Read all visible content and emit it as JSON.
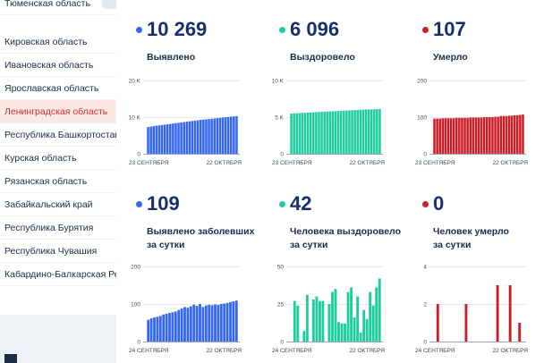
{
  "sidebar": {
    "items": [
      {
        "label": "Тюменская область"
      },
      {
        "label": "Кировская область"
      },
      {
        "label": "Ивановская область"
      },
      {
        "label": "Ярославская область"
      },
      {
        "label": "Ленинградская область",
        "active": true
      },
      {
        "label": "Республика Башкортостан"
      },
      {
        "label": "Курская область"
      },
      {
        "label": "Рязанская область"
      },
      {
        "label": "Забайкальский край"
      },
      {
        "label": "Республика Бурятия"
      },
      {
        "label": "Республика Чувашия"
      },
      {
        "label": "Кабардино-Балкарская Республика"
      }
    ]
  },
  "colors": {
    "blue": "#3466f0",
    "green": "#1fcca0",
    "red": "#cc1e28"
  },
  "stats": [
    {
      "value": "10 269",
      "label_lines": [
        "Выявлено"
      ],
      "color": "blue",
      "icon": "blue-dot-icon"
    },
    {
      "value": "6 096",
      "label_lines": [
        "Выздоровело"
      ],
      "color": "green",
      "icon": "green-dot-icon"
    },
    {
      "value": "107",
      "label_lines": [
        "Умерло"
      ],
      "color": "red",
      "icon": "red-dot-icon"
    },
    {
      "value": "109",
      "label_lines": [
        "Выявлено заболевших",
        "за сутки"
      ],
      "color": "blue",
      "icon": "blue-dot-icon"
    },
    {
      "value": "42",
      "label_lines": [
        "Человека выздоровело",
        "за сутки"
      ],
      "color": "green",
      "icon": "green-dot-icon"
    },
    {
      "value": "0",
      "label_lines": [
        "Человек умерло",
        "за сутки"
      ],
      "color": "red",
      "icon": "red-dot-icon"
    }
  ],
  "chart_data": [
    {
      "type": "bar",
      "color": "blue",
      "yticks": [
        "20 K",
        "10 K",
        "0"
      ],
      "ylim": [
        0,
        20000
      ],
      "x_start": "23 СЕНТЯБРЯ",
      "x_end": "22 ОКТЯБРЯ",
      "values": [
        7300,
        7420,
        7550,
        7650,
        7750,
        7850,
        7950,
        8050,
        8150,
        8250,
        8350,
        8450,
        8550,
        8650,
        8750,
        8850,
        8950,
        9050,
        9150,
        9250,
        9330,
        9400,
        9480,
        9560,
        9640,
        9720,
        9800,
        9880,
        9960,
        10040,
        10120,
        10190,
        10269
      ]
    },
    {
      "type": "bar",
      "color": "green",
      "yticks": [
        "10 K",
        "5 K",
        "0"
      ],
      "ylim": [
        0,
        10000
      ],
      "x_start": "23 СЕНТЯБРЯ",
      "x_end": "22 ОКТЯБРЯ",
      "values": [
        5500,
        5520,
        5540,
        5560,
        5580,
        5600,
        5620,
        5640,
        5660,
        5680,
        5700,
        5720,
        5740,
        5760,
        5780,
        5800,
        5820,
        5840,
        5860,
        5880,
        5900,
        5920,
        5940,
        5960,
        5980,
        6000,
        6020,
        6040,
        6050,
        6060,
        6070,
        6085,
        6096
      ]
    },
    {
      "type": "bar",
      "color": "red",
      "yticks": [
        "200",
        "100",
        "0"
      ],
      "ylim": [
        0,
        200
      ],
      "x_start": "23 СЕНТЯБРЯ",
      "x_end": "22 ОКТЯБРЯ",
      "values": [
        96,
        96,
        96,
        97,
        97,
        97,
        97,
        97,
        98,
        98,
        98,
        98,
        98,
        99,
        99,
        99,
        99,
        99,
        100,
        100,
        100,
        100,
        101,
        101,
        103,
        103,
        103,
        104,
        104,
        105,
        105,
        106,
        107
      ]
    },
    {
      "type": "bar",
      "color": "blue",
      "yticks": [
        "200",
        "100",
        "0"
      ],
      "ylim": [
        0,
        200
      ],
      "x_start": "24 СЕНТЯБРЯ",
      "x_end": "22 ОКТЯБРЯ",
      "values": [
        58,
        62,
        64,
        66,
        68,
        72,
        74,
        76,
        78,
        80,
        84,
        88,
        92,
        90,
        94,
        98,
        95,
        100,
        92,
        96,
        98,
        97,
        99,
        98,
        100,
        101,
        103,
        105,
        107,
        109
      ]
    },
    {
      "type": "bar",
      "color": "green",
      "yticks": [
        "50",
        "25",
        "0"
      ],
      "ylim": [
        0,
        50
      ],
      "x_start": "24 СЕНТЯБРЯ",
      "x_end": "22 ОКТЯБРЯ",
      "values": [
        0,
        27,
        24,
        0,
        7,
        31,
        0,
        28,
        30,
        27,
        27,
        0,
        25,
        33,
        35,
        13,
        12,
        12,
        33,
        36,
        16,
        30,
        6,
        21,
        15,
        33,
        24,
        36,
        42
      ]
    },
    {
      "type": "bar",
      "color": "red",
      "yticks": [
        "4",
        "2",
        "0"
      ],
      "ylim": [
        0,
        4
      ],
      "x_start": "24 СЕНТЯБРЯ",
      "x_end": "22 ОКТЯБРЯ",
      "values": [
        0,
        2,
        0,
        0,
        0,
        0,
        0,
        0,
        0,
        0,
        2,
        0,
        0,
        0,
        0,
        0,
        0,
        0,
        0,
        0,
        3,
        0,
        0,
        0,
        3,
        0,
        0,
        1,
        0
      ]
    }
  ]
}
